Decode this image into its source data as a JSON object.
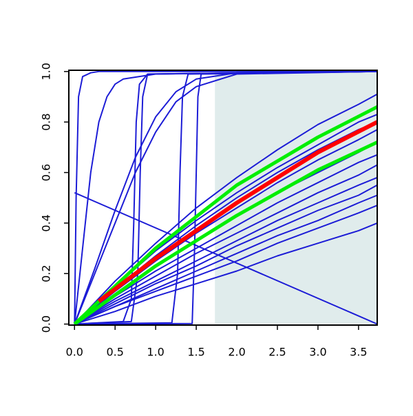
{
  "chart_data": {
    "type": "line",
    "xlim": [
      -0.07,
      3.73
    ],
    "ylim": [
      -0.004,
      1.005
    ],
    "xticks": [
      {
        "value": 0,
        "label": "0.0"
      },
      {
        "value": 0.5,
        "label": "0.5"
      },
      {
        "value": 1,
        "label": "1.0"
      },
      {
        "value": 1.5,
        "label": "1.5"
      },
      {
        "value": 2,
        "label": "2.0"
      },
      {
        "value": 2.5,
        "label": "2.5"
      },
      {
        "value": 3,
        "label": "3.0"
      },
      {
        "value": 3.5,
        "label": "3.5"
      }
    ],
    "yticks": [
      {
        "value": 0,
        "label": "0.0"
      },
      {
        "value": 0.2,
        "label": "0.2"
      },
      {
        "value": 0.4,
        "label": "0.4"
      },
      {
        "value": 0.6,
        "label": "0.6"
      },
      {
        "value": 0.8,
        "label": "0.8"
      },
      {
        "value": 1,
        "label": "1.0"
      }
    ],
    "shaded_region": {
      "x": [
        1.73,
        3.73
      ],
      "y": [
        0,
        1
      ],
      "color": "#e0ecec"
    },
    "series": [
      {
        "color": "#1c1cd6",
        "x": [
          0,
          0.5,
          1,
          1.5,
          2,
          2.5,
          3,
          3.5,
          3.73
        ],
        "values": [
          0,
          0.17,
          0.32,
          0.46,
          0.58,
          0.69,
          0.79,
          0.87,
          0.91
        ]
      },
      {
        "color": "#1c1cd6",
        "x": [
          0,
          0.5,
          1,
          1.5,
          2,
          2.5,
          3,
          3.5,
          3.73
        ],
        "values": [
          0,
          0.15,
          0.29,
          0.41,
          0.52,
          0.62,
          0.71,
          0.8,
          0.83
        ]
      },
      {
        "color": "#1c1cd6",
        "x": [
          0,
          0.5,
          1,
          1.5,
          2,
          2.5,
          3,
          3.5,
          3.73
        ],
        "values": [
          0,
          0.14,
          0.27,
          0.39,
          0.5,
          0.6,
          0.69,
          0.77,
          0.8
        ]
      },
      {
        "color": "#1c1cd6",
        "x": [
          0,
          0.5,
          1,
          1.5,
          2,
          2.5,
          3,
          3.5,
          3.73
        ],
        "values": [
          0,
          0.13,
          0.25,
          0.36,
          0.46,
          0.56,
          0.65,
          0.73,
          0.77
        ]
      },
      {
        "color": "#1c1cd6",
        "x": [
          0,
          0.5,
          1,
          1.5,
          2,
          2.5,
          3,
          3.5,
          3.73
        ],
        "values": [
          0,
          0.12,
          0.23,
          0.33,
          0.43,
          0.52,
          0.6,
          0.68,
          0.72
        ]
      },
      {
        "color": "#1c1cd6",
        "x": [
          0,
          0.5,
          1,
          1.5,
          2,
          2.5,
          3,
          3.5,
          3.73
        ],
        "values": [
          0,
          0.11,
          0.21,
          0.3,
          0.39,
          0.48,
          0.56,
          0.64,
          0.67
        ]
      },
      {
        "color": "#1c1cd6",
        "x": [
          0,
          0.5,
          1,
          1.5,
          2,
          2.5,
          3,
          3.5,
          3.73
        ],
        "values": [
          0,
          0.1,
          0.19,
          0.28,
          0.36,
          0.44,
          0.52,
          0.59,
          0.63
        ]
      },
      {
        "color": "#1c1cd6",
        "x": [
          0,
          0.5,
          1,
          1.5,
          2,
          2.5,
          3,
          3.5,
          3.73
        ],
        "values": [
          0,
          0.09,
          0.17,
          0.25,
          0.33,
          0.41,
          0.48,
          0.55,
          0.58
        ]
      },
      {
        "color": "#1c1cd6",
        "x": [
          0,
          0.5,
          1,
          1.5,
          2,
          2.5,
          3,
          3.5,
          3.73
        ],
        "values": [
          0,
          0.08,
          0.16,
          0.23,
          0.31,
          0.38,
          0.45,
          0.51,
          0.55
        ]
      },
      {
        "color": "#1c1cd6",
        "x": [
          0,
          0.5,
          1,
          1.5,
          2,
          2.5,
          3,
          3.5,
          3.73
        ],
        "values": [
          0,
          0.07,
          0.14,
          0.21,
          0.28,
          0.35,
          0.41,
          0.48,
          0.51
        ]
      },
      {
        "color": "#1c1cd6",
        "x": [
          0,
          0.5,
          1,
          1.5,
          2,
          2.5,
          3,
          3.5,
          3.73
        ],
        "values": [
          0,
          0.07,
          0.13,
          0.19,
          0.25,
          0.32,
          0.38,
          0.44,
          0.47
        ]
      },
      {
        "color": "#1c1cd6",
        "x": [
          0,
          0.5,
          1,
          1.5,
          2,
          2.5,
          3,
          3.5,
          3.73
        ],
        "values": [
          0,
          0.05,
          0.11,
          0.16,
          0.21,
          0.27,
          0.32,
          0.37,
          0.4
        ]
      },
      {
        "color": "#1c1cd6",
        "x": [
          0,
          3.73
        ],
        "values": [
          0.52,
          0
        ]
      },
      {
        "color": "#1c1cd6",
        "x": [
          0,
          0.02,
          0.05,
          0.1,
          0.2,
          0.3,
          3.73
        ],
        "values": [
          0,
          0.5,
          0.9,
          0.98,
          0.995,
          1,
          1
        ]
      },
      {
        "color": "#1c1cd6",
        "x": [
          0,
          0.1,
          0.2,
          0.3,
          0.4,
          0.5,
          0.6,
          1,
          3.73
        ],
        "values": [
          0,
          0.3,
          0.6,
          0.8,
          0.9,
          0.95,
          0.97,
          0.99,
          1
        ]
      },
      {
        "color": "#1c1cd6",
        "x": [
          0,
          0.25,
          0.5,
          0.75,
          1,
          1.25,
          1.5,
          2,
          3.73
        ],
        "values": [
          0,
          0.22,
          0.45,
          0.66,
          0.82,
          0.92,
          0.97,
          0.995,
          1
        ]
      },
      {
        "color": "#1c1cd6",
        "x": [
          0,
          0.25,
          0.5,
          0.75,
          1,
          1.25,
          1.5,
          2,
          3.73
        ],
        "values": [
          0,
          0.2,
          0.4,
          0.6,
          0.76,
          0.88,
          0.94,
          0.99,
          1
        ]
      },
      {
        "color": "#1c1cd6",
        "x": [
          0,
          0.6,
          0.7,
          0.73,
          0.76,
          0.8,
          0.9,
          3.73
        ],
        "values": [
          0,
          0.01,
          0.1,
          0.4,
          0.8,
          0.95,
          0.99,
          1
        ]
      },
      {
        "color": "#1c1cd6",
        "x": [
          0,
          0.7,
          0.78,
          0.81,
          0.84,
          0.9,
          3.73
        ],
        "values": [
          0,
          0.01,
          0.2,
          0.6,
          0.9,
          0.99,
          1
        ]
      },
      {
        "color": "#1c1cd6",
        "x": [
          0,
          1.2,
          1.27,
          1.3,
          1.33,
          1.4,
          3.73
        ],
        "values": [
          0,
          0.005,
          0.2,
          0.6,
          0.9,
          0.99,
          1
        ]
      },
      {
        "color": "#1c1cd6",
        "x": [
          0,
          1.45,
          1.48,
          1.5,
          1.52,
          1.56,
          3.73
        ],
        "values": [
          0,
          0.002,
          0.3,
          0.6,
          0.9,
          0.99,
          1
        ]
      },
      {
        "color": "#00ee00",
        "line_width": 5,
        "x": [
          0,
          1,
          2,
          3,
          3.73
        ],
        "values": [
          0,
          0.3,
          0.55,
          0.74,
          0.86
        ]
      },
      {
        "color": "#00ee00",
        "line_width": 5,
        "x": [
          0,
          1,
          2,
          3,
          3.73
        ],
        "values": [
          0,
          0.23,
          0.43,
          0.61,
          0.72
        ]
      },
      {
        "color": "#ff0000",
        "line_width": 6,
        "x": [
          0.3,
          1,
          1.5,
          2,
          2.5,
          3,
          3.73
        ],
        "values": [
          0.09,
          0.26,
          0.37,
          0.48,
          0.58,
          0.68,
          0.8
        ]
      }
    ]
  }
}
